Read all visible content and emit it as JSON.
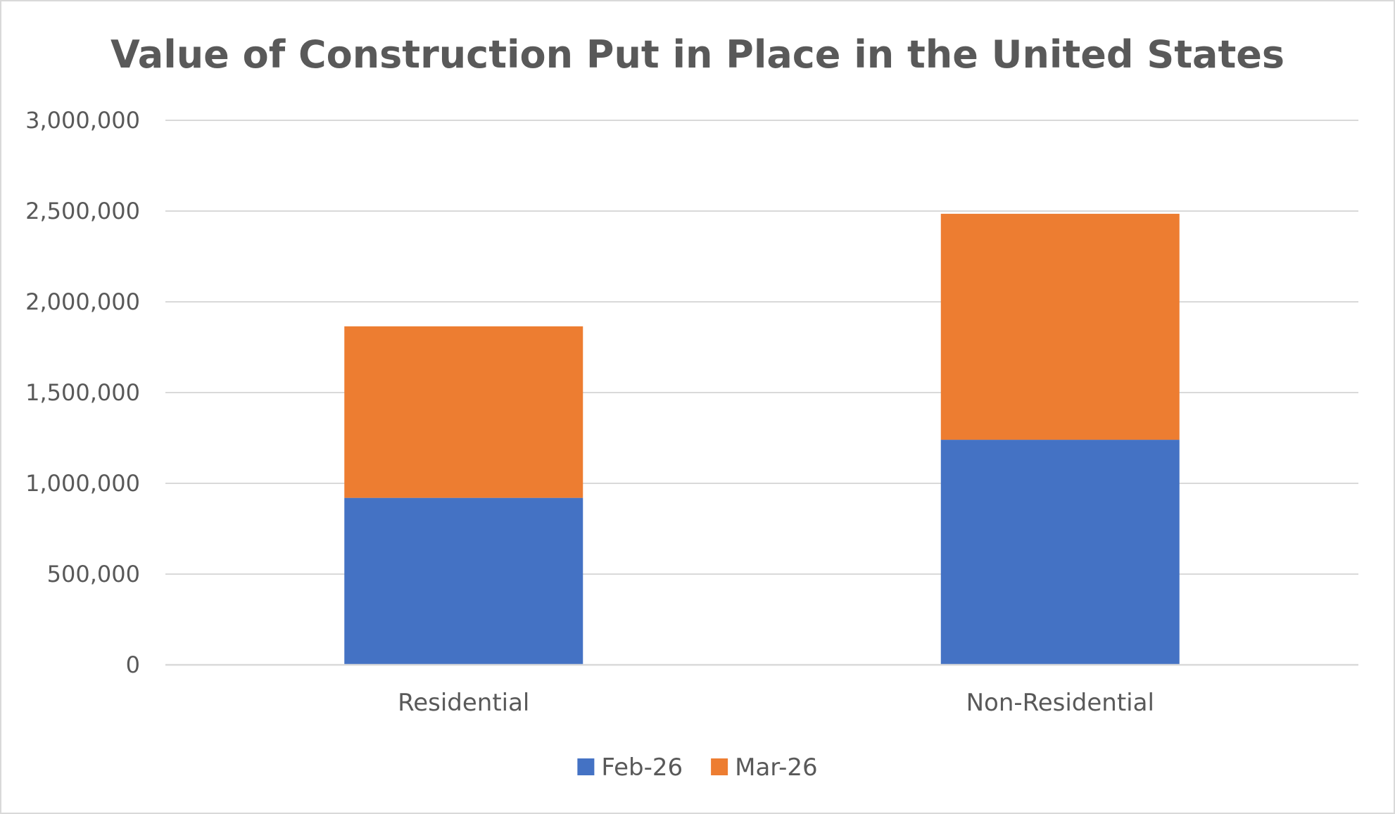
{
  "chart_data": {
    "type": "bar",
    "stacked": true,
    "title": "Value of Construction Put in Place in the United States",
    "xlabel": "",
    "ylabel": "",
    "categories": [
      "Residential",
      "Non-Residential"
    ],
    "series": [
      {
        "name": "Feb-26",
        "color": "#4472c4",
        "values": [
          920000,
          1240000
        ]
      },
      {
        "name": "Mar-26",
        "color": "#ed7d31",
        "values": [
          945000,
          1245000
        ]
      }
    ],
    "ylim": [
      0,
      3000000
    ],
    "yticks": [
      0,
      500000,
      1000000,
      1500000,
      2000000,
      2500000,
      3000000
    ],
    "ytick_labels": [
      "0",
      "500,000",
      "1,000,000",
      "1,500,000",
      "2,000,000",
      "2,500,000",
      "3,000,000"
    ],
    "grid": true,
    "legend_position": "bottom"
  }
}
